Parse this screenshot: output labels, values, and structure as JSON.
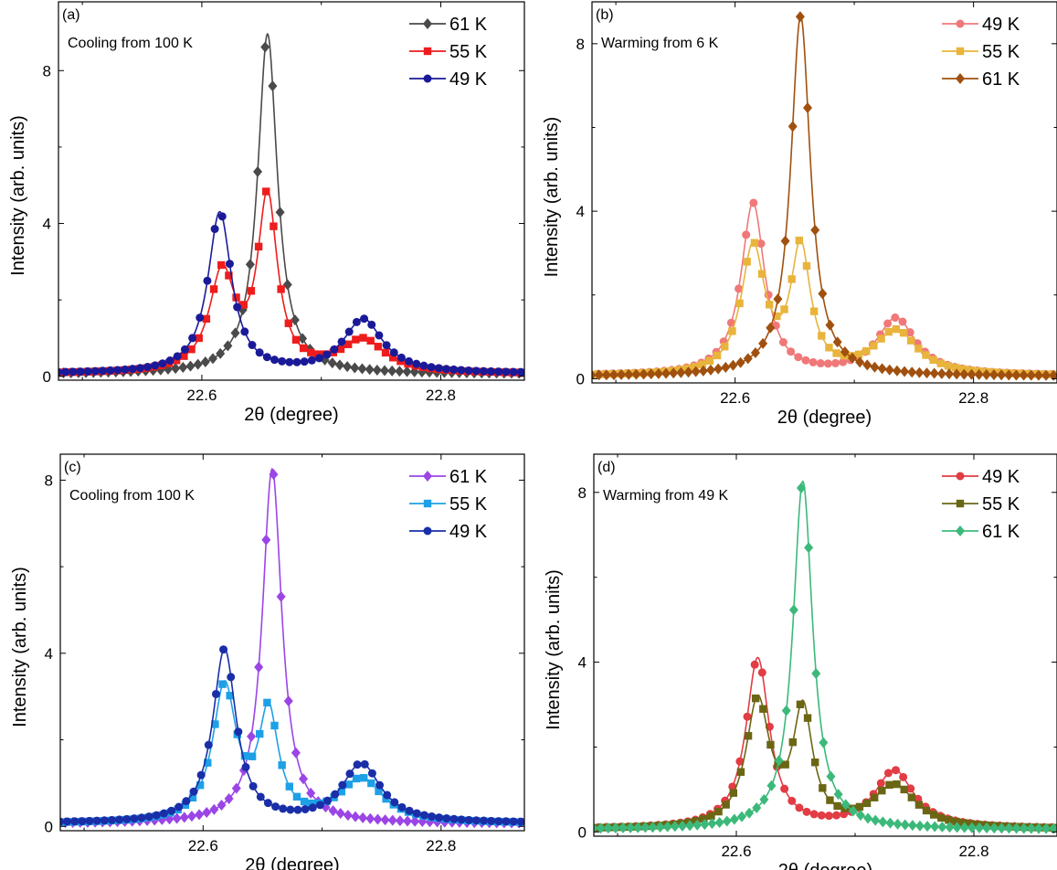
{
  "chart_data": [
    {
      "type": "line",
      "panel_label": "(a)",
      "annotation": "Cooling from 100 K",
      "xlabel": "2θ (degree)",
      "ylabel": "Intensity (arb. units)",
      "xlim": [
        22.48,
        22.87
      ],
      "ylim": [
        -0.1,
        9.8
      ],
      "xticks": [
        22.6,
        22.8
      ],
      "xtick_labels": [
        "22.6",
        "22.8"
      ],
      "yticks": [
        0,
        4,
        8
      ],
      "ytick_labels": [
        "0",
        "4",
        "8"
      ],
      "legend_position": "top-right",
      "series": [
        {
          "name": "61 K",
          "color": "#4a4a4a",
          "marker": "diamond",
          "peaks": [
            [
              22.655,
              8.9,
              0.01
            ]
          ],
          "baseline": 0.06
        },
        {
          "name": "55 K",
          "color": "#ee1c1c",
          "marker": "square",
          "peaks": [
            [
              22.617,
              2.55,
              0.013
            ],
            [
              22.655,
              4.5,
              0.01
            ],
            [
              22.735,
              0.85,
              0.022
            ]
          ],
          "baseline": 0.06
        },
        {
          "name": "49 K",
          "color": "#1a1a99",
          "marker": "circle",
          "peaks": [
            [
              22.615,
              4.2,
              0.012
            ],
            [
              22.735,
              1.4,
              0.02
            ]
          ],
          "baseline": 0.07
        }
      ]
    },
    {
      "type": "line",
      "panel_label": "(b)",
      "annotation": "Warming from 6 K",
      "xlabel": "2θ (degree)",
      "ylabel": "Intensity (arb. units)",
      "xlim": [
        22.48,
        22.87
      ],
      "ylim": [
        -0.1,
        9.0
      ],
      "xticks": [
        22.6,
        22.8
      ],
      "xtick_labels": [
        "22.6",
        "22.8"
      ],
      "yticks": [
        0,
        4,
        8
      ],
      "ytick_labels": [
        "0",
        "4",
        "8"
      ],
      "legend_position": "top-right",
      "series": [
        {
          "name": "49 K",
          "color": "#f07878",
          "marker": "circle",
          "peaks": [
            [
              22.615,
              4.1,
              0.012
            ],
            [
              22.735,
              1.35,
              0.02
            ]
          ],
          "baseline": 0.07
        },
        {
          "name": "55 K",
          "color": "#e8b43c",
          "marker": "square",
          "peaks": [
            [
              22.615,
              3.0,
              0.012
            ],
            [
              22.655,
              2.95,
              0.01
            ],
            [
              22.735,
              1.05,
              0.022
            ]
          ],
          "baseline": 0.06
        },
        {
          "name": "61 K",
          "color": "#a0500e",
          "marker": "diamond",
          "peaks": [
            [
              22.655,
              8.6,
              0.01
            ]
          ],
          "baseline": 0.06
        }
      ]
    },
    {
      "type": "line",
      "panel_label": "(c)",
      "annotation": "Cooling from 100 K",
      "xlabel": "2θ (degree)",
      "ylabel": "Intensity (arb. units)",
      "xlim": [
        22.48,
        22.87
      ],
      "ylim": [
        -0.1,
        8.6
      ],
      "xticks": [
        22.6,
        22.8
      ],
      "xtick_labels": [
        "22.6",
        "22.8"
      ],
      "yticks": [
        0,
        4,
        8
      ],
      "ytick_labels": [
        "0",
        "4",
        "8"
      ],
      "legend_position": "top-right",
      "series": [
        {
          "name": "61 K",
          "color": "#9b45e6",
          "marker": "diamond",
          "peaks": [
            [
              22.658,
              8.2,
              0.01
            ]
          ],
          "baseline": 0.06
        },
        {
          "name": "55 K",
          "color": "#1ea0e6",
          "marker": "square",
          "peaks": [
            [
              22.618,
              3.1,
              0.012
            ],
            [
              22.655,
              2.45,
              0.01
            ],
            [
              22.733,
              1.0,
              0.022
            ]
          ],
          "baseline": 0.06
        },
        {
          "name": "49 K",
          "color": "#1a2ea8",
          "marker": "circle",
          "peaks": [
            [
              22.618,
              4.0,
              0.012
            ],
            [
              22.733,
              1.35,
              0.02
            ]
          ],
          "baseline": 0.07
        }
      ]
    },
    {
      "type": "line",
      "panel_label": "(d)",
      "annotation": "Warming from 49 K",
      "xlabel": "2θ (degree)",
      "ylabel": "Intensity (arb. units)",
      "xlim": [
        22.48,
        22.87
      ],
      "ylim": [
        -0.1,
        8.9
      ],
      "xticks": [
        22.6,
        22.8
      ],
      "xtick_labels": [
        "22.6",
        "22.8"
      ],
      "yticks": [
        0,
        4,
        8
      ],
      "ytick_labels": [
        "0",
        "4",
        "8"
      ],
      "legend_position": "top-right",
      "series": [
        {
          "name": "49 K",
          "color": "#e23c44",
          "marker": "circle",
          "peaks": [
            [
              22.618,
              4.0,
              0.012
            ],
            [
              22.733,
              1.35,
              0.02
            ]
          ],
          "baseline": 0.07
        },
        {
          "name": "55 K",
          "color": "#6b6614",
          "marker": "square",
          "peaks": [
            [
              22.618,
              2.95,
              0.012
            ],
            [
              22.656,
              2.7,
              0.01
            ],
            [
              22.733,
              1.0,
              0.022
            ]
          ],
          "baseline": 0.06
        },
        {
          "name": "61 K",
          "color": "#3cb97a",
          "marker": "diamond",
          "peaks": [
            [
              22.656,
              8.2,
              0.01
            ]
          ],
          "baseline": 0.06
        }
      ]
    }
  ]
}
